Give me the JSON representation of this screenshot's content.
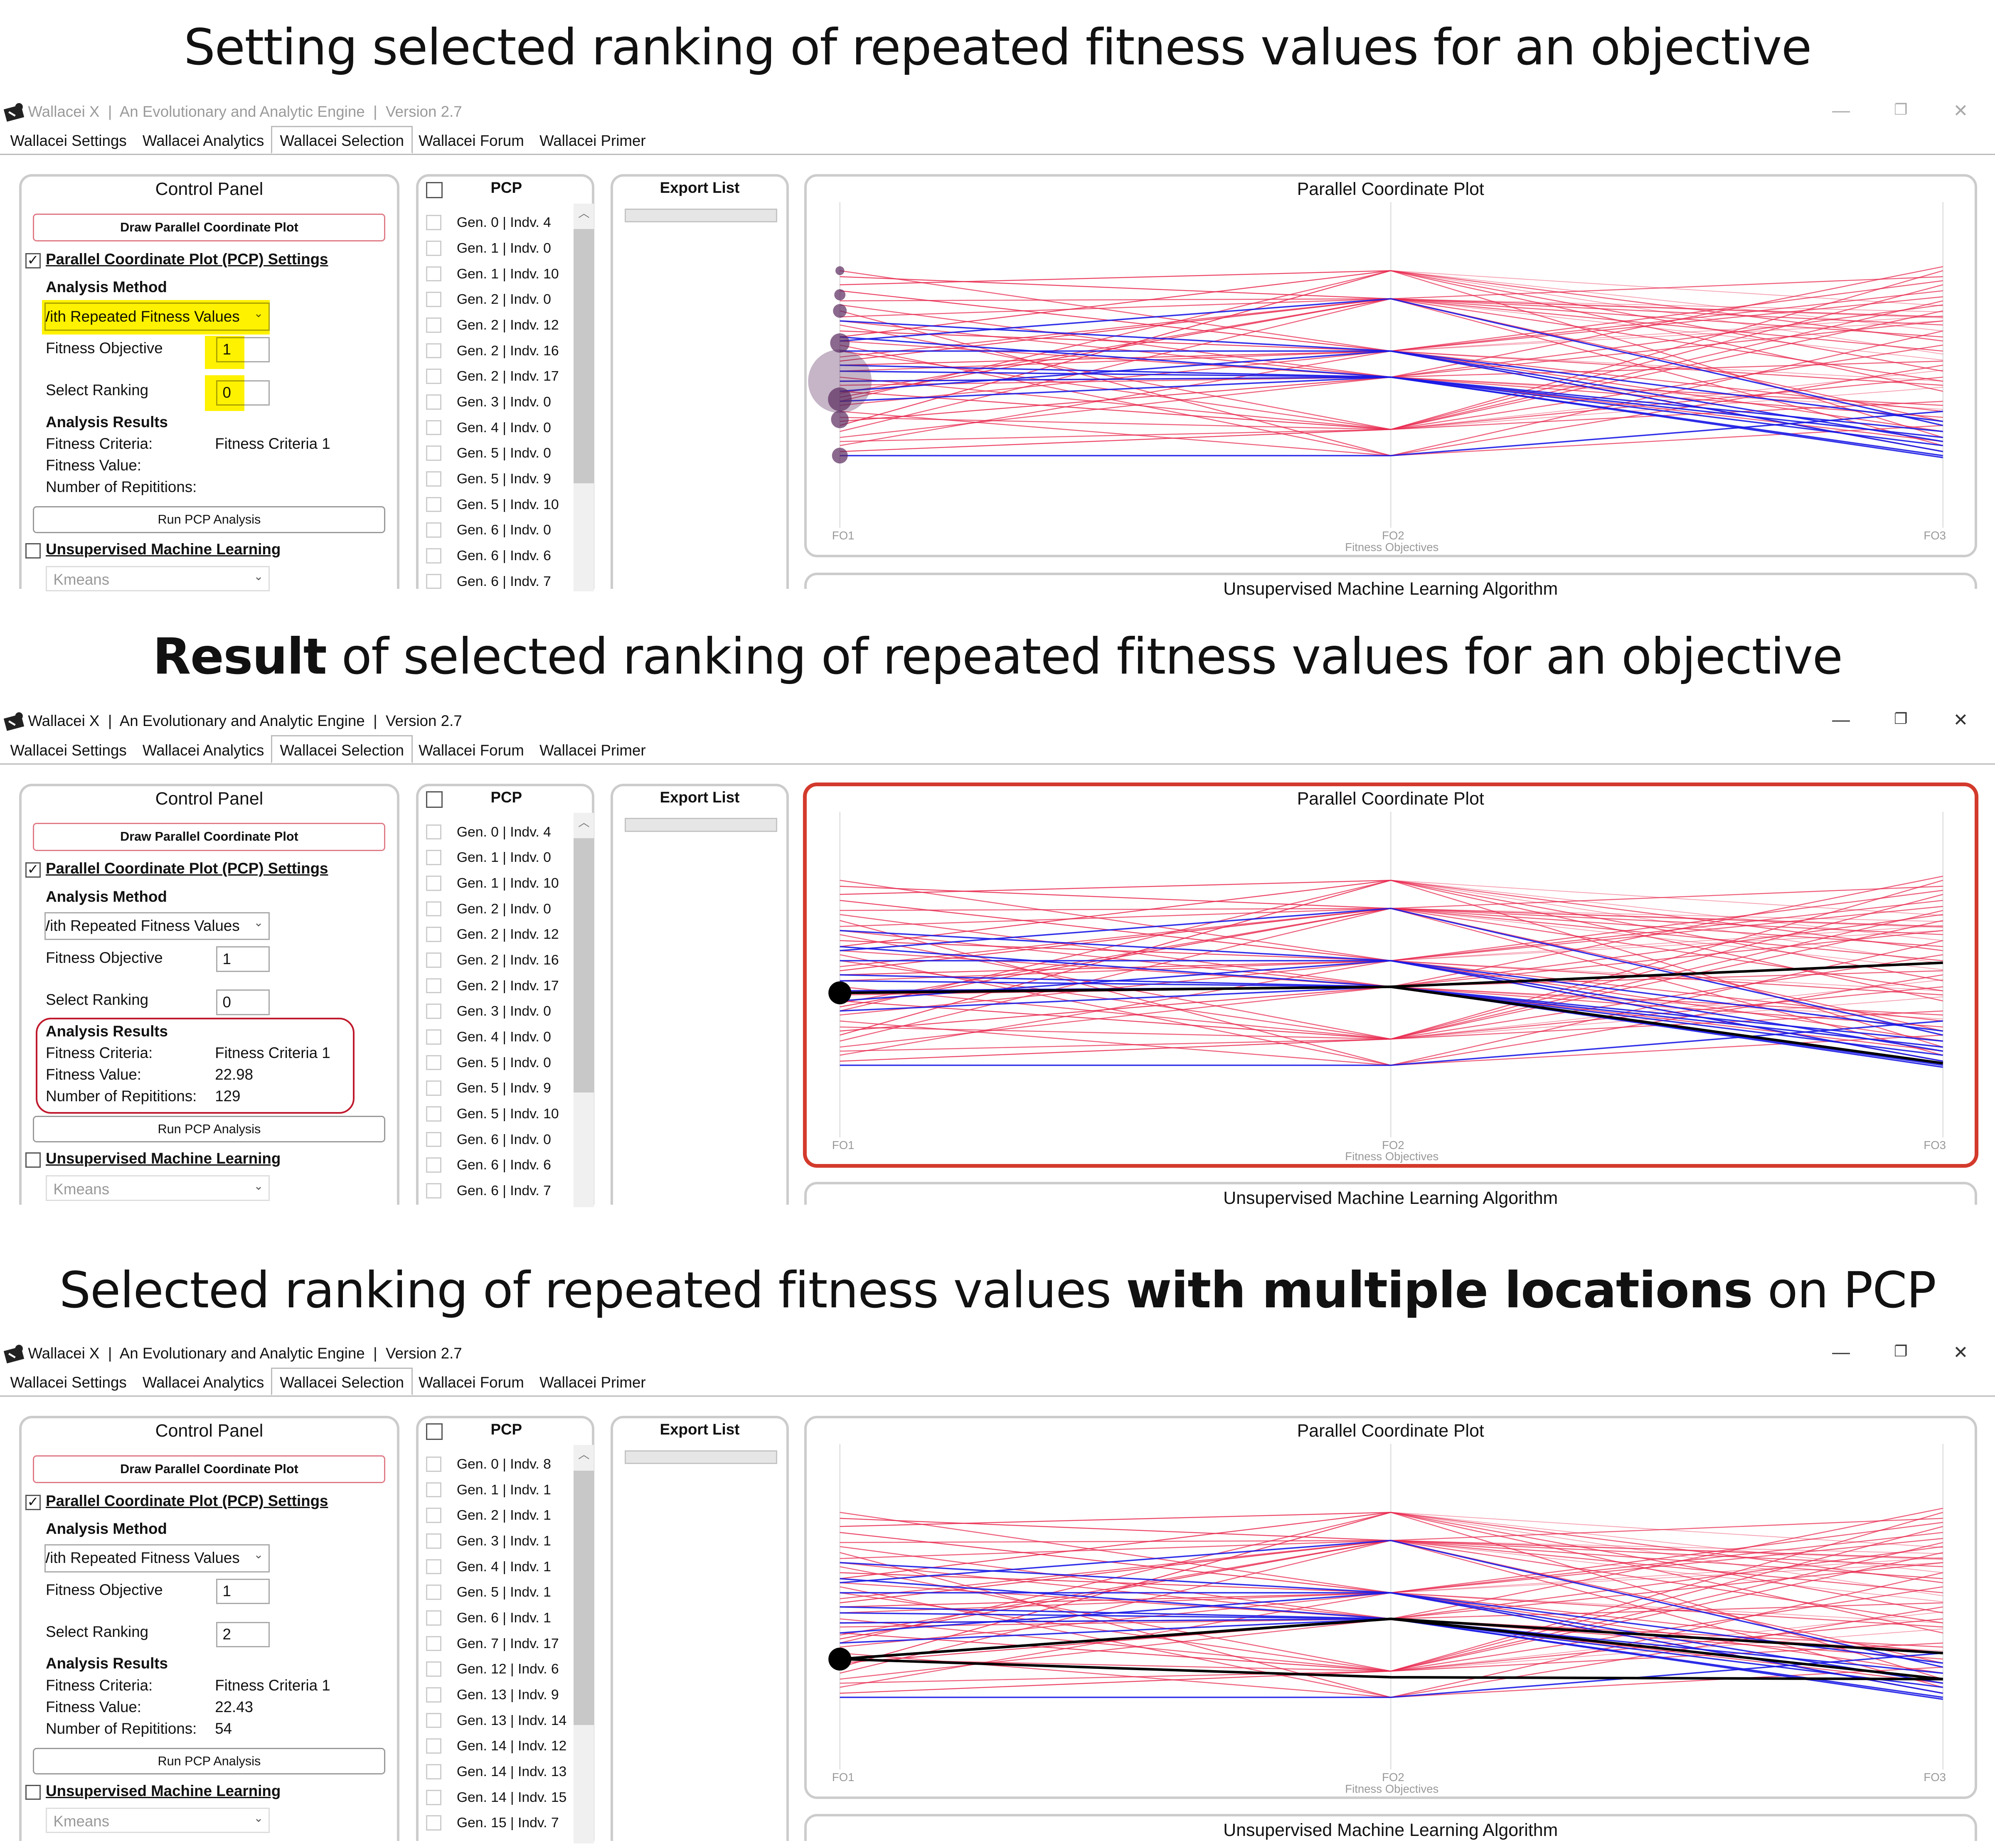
{
  "titles": [
    {
      "a": "Setting selected ranking of repeated fitness values for an objective",
      "b": "",
      "c": ""
    },
    {
      "a": "",
      "b": "Result",
      "c": " of selected ranking of repeated fitness values for an objective"
    },
    {
      "a": "Selected ranking of repeated fitness values ",
      "b": "with multiple locations",
      "c": " on PCP"
    }
  ],
  "app": {
    "title": "Wallacei X  |  An Evolutionary and Analytic Engine  |  Version 2.7",
    "window_controls": {
      "minimize": "—",
      "restore": "❐",
      "close": "✕"
    },
    "tabs": [
      "Wallacei Settings",
      "Wallacei Analytics",
      "Wallacei Selection",
      "Wallacei Forum",
      "Wallacei Primer"
    ],
    "control_panel_title": "Control Panel",
    "draw_button": "Draw Parallel Coordinate Plot",
    "pcp_settings": "Parallel Coordinate Plot (PCP) Settings",
    "analysis_method": "Analysis Method",
    "fitness_objective_label": "Fitness Objective",
    "select_ranking_label": "Select Ranking",
    "analysis_results": "Analysis Results",
    "fitness_criteria_label": "Fitness Criteria:",
    "fitness_value_label": "Fitness Value:",
    "repetitions_label": "Number of Repititions:",
    "run_button": "Run PCP Analysis",
    "unsup_label": "Unsupervised Machine Learning",
    "unsup_method": "Kmeans",
    "pcp_header": "PCP",
    "export_header": "Export List",
    "plot_title": "Parallel Coordinate Plot",
    "axis_labels": [
      "FO1",
      "FO2",
      "FO3"
    ],
    "axis_title": "Fitness Objectives",
    "unsup_title": "Unsupervised Machine Learning Algorithm",
    "checkmark": "✓",
    "chevron": "⌄",
    "scroll_up": "︿"
  },
  "windows": [
    {
      "active": false,
      "highlight": "yellow",
      "analysis_method_value": "With Repeated Fitness Values",
      "fitness_objective": "1",
      "select_ranking": "0",
      "fitness_criteria": "Fitness Criteria 1",
      "fitness_value": "",
      "repetitions": "",
      "pcp_list": [
        "Gen. 0 | Indv. 4",
        "Gen. 1 | Indv. 0",
        "Gen. 1 | Indv. 10",
        "Gen. 2 | Indv. 0",
        "Gen. 2 | Indv. 12",
        "Gen. 2 | Indv. 16",
        "Gen. 2 | Indv. 17",
        "Gen. 3 | Indv. 0",
        "Gen. 4 | Indv. 0",
        "Gen. 5 | Indv. 0",
        "Gen. 5 | Indv. 9",
        "Gen. 5 | Indv. 10",
        "Gen. 6 | Indv. 0",
        "Gen. 6 | Indv. 6",
        "Gen. 6 | Indv. 7"
      ]
    },
    {
      "active": true,
      "highlight": "red",
      "analysis_method_value": "With Repeated Fitness Values",
      "fitness_objective": "1",
      "select_ranking": "0",
      "fitness_criteria": "Fitness Criteria 1",
      "fitness_value": "22.98",
      "repetitions": "129",
      "pcp_list": [
        "Gen. 0 | Indv. 4",
        "Gen. 1 | Indv. 0",
        "Gen. 1 | Indv. 10",
        "Gen. 2 | Indv. 0",
        "Gen. 2 | Indv. 12",
        "Gen. 2 | Indv. 16",
        "Gen. 2 | Indv. 17",
        "Gen. 3 | Indv. 0",
        "Gen. 4 | Indv. 0",
        "Gen. 5 | Indv. 0",
        "Gen. 5 | Indv. 9",
        "Gen. 5 | Indv. 10",
        "Gen. 6 | Indv. 0",
        "Gen. 6 | Indv. 6",
        "Gen. 6 | Indv. 7"
      ]
    },
    {
      "active": true,
      "highlight": "none",
      "analysis_method_value": "With Repeated Fitness Values",
      "fitness_objective": "1",
      "select_ranking": "2",
      "fitness_criteria": "Fitness Criteria 1",
      "fitness_value": "22.43",
      "repetitions": "54",
      "pcp_list": [
        "Gen. 0 | Indv. 8",
        "Gen. 1 | Indv. 1",
        "Gen. 2 | Indv. 1",
        "Gen. 3 | Indv. 1",
        "Gen. 4 | Indv. 1",
        "Gen. 5 | Indv. 1",
        "Gen. 6 | Indv. 1",
        "Gen. 7 | Indv. 17",
        "Gen. 12 | Indv. 6",
        "Gen. 13 | Indv. 9",
        "Gen. 13 | Indv. 14",
        "Gen. 14 | Indv. 12",
        "Gen. 14 | Indv. 13",
        "Gen. 14 | Indv. 15",
        "Gen. 15 | Indv. 7"
      ]
    }
  ],
  "chart_data": {
    "type": "parallel-coordinates",
    "title": "Parallel Coordinate Plot",
    "axes": [
      "FO1",
      "FO2",
      "FO3"
    ],
    "xlabel": "Fitness Objectives",
    "value_range": [
      0,
      100
    ],
    "colors": {
      "population": "#e8284e",
      "pareto": "#1a1ae6",
      "selected": "#000000",
      "bubble": "#5a2a5e"
    },
    "population_lines": [
      [
        88,
        95,
        60
      ],
      [
        80,
        81,
        92
      ],
      [
        72,
        81,
        40
      ],
      [
        65,
        55,
        85
      ],
      [
        60,
        42,
        70
      ],
      [
        55,
        16,
        30
      ],
      [
        50,
        81,
        20
      ],
      [
        45,
        55,
        15
      ],
      [
        40,
        42,
        97
      ],
      [
        35,
        16,
        75
      ],
      [
        30,
        95,
        45
      ],
      [
        25,
        3,
        65
      ],
      [
        20,
        42,
        10
      ],
      [
        15,
        81,
        55
      ],
      [
        10,
        16,
        88
      ],
      [
        85,
        55,
        25
      ],
      [
        78,
        42,
        50
      ],
      [
        68,
        16,
        80
      ],
      [
        62,
        95,
        35
      ],
      [
        58,
        3,
        18
      ],
      [
        52,
        81,
        72
      ],
      [
        48,
        55,
        90
      ],
      [
        42,
        16,
        42
      ],
      [
        38,
        42,
        28
      ],
      [
        32,
        81,
        62
      ],
      [
        28,
        55,
        5
      ],
      [
        22,
        16,
        95
      ],
      [
        18,
        95,
        12
      ],
      [
        12,
        42,
        78
      ],
      [
        8,
        55,
        38
      ],
      [
        92,
        81,
        68
      ],
      [
        75,
        3,
        48
      ],
      [
        70,
        42,
        22
      ],
      [
        5,
        16,
        58
      ],
      [
        95,
        55,
        82
      ],
      [
        34,
        81,
        8
      ]
    ],
    "pareto_lines": [
      [
        70,
        55,
        20
      ],
      [
        62,
        42,
        15
      ],
      [
        55,
        55,
        10
      ],
      [
        48,
        42,
        8
      ],
      [
        40,
        42,
        12
      ],
      [
        35,
        55,
        5
      ],
      [
        30,
        42,
        3
      ],
      [
        3,
        3,
        25
      ],
      [
        60,
        81,
        18
      ],
      [
        45,
        42,
        2
      ]
    ],
    "fo1_repetition_bubbles": [
      {
        "value": 95,
        "count": 2
      },
      {
        "value": 83,
        "count": 4
      },
      {
        "value": 75,
        "count": 6
      },
      {
        "value": 59,
        "count": 12
      },
      {
        "value": 40,
        "count": 129
      },
      {
        "value": 31,
        "count": 18
      },
      {
        "value": 21,
        "count": 10
      },
      {
        "value": 3,
        "count": 8
      }
    ],
    "selected_lines_per_window": [
      [],
      [
        [
          39,
          42,
          54
        ],
        [
          39,
          42,
          4
        ]
      ],
      [
        [
          22,
          42,
          25
        ],
        [
          22,
          13,
          12
        ],
        [
          22,
          42,
          12
        ]
      ]
    ],
    "selected_point_per_window": [
      null,
      39,
      22
    ]
  }
}
